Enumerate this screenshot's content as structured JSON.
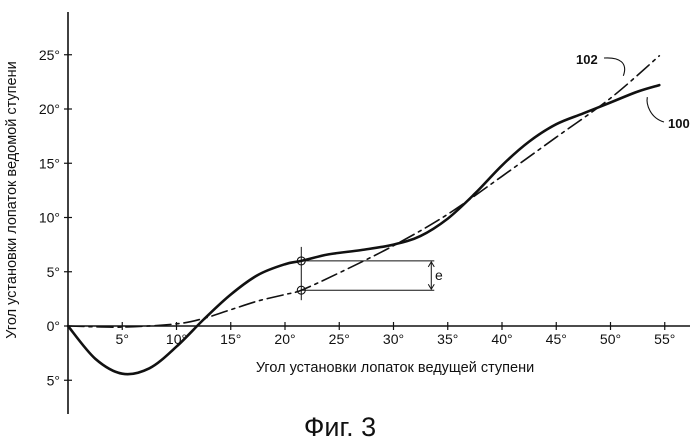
{
  "chart_data": {
    "type": "line",
    "title": "",
    "caption": "Фиг. 3",
    "xlabel": "Угол установки лопаток ведущей ступени",
    "ylabel": "Угол установки лопаток ведомой ступени",
    "xlim": [
      0,
      56
    ],
    "ylim": [
      -8,
      30
    ],
    "x_ticks": [
      {
        "value": 5,
        "label": "5°"
      },
      {
        "value": 10,
        "label": "10°"
      },
      {
        "value": 15,
        "label": "15°"
      },
      {
        "value": 20,
        "label": "20°"
      },
      {
        "value": 25,
        "label": "25°"
      },
      {
        "value": 30,
        "label": "30°"
      },
      {
        "value": 35,
        "label": "35°"
      },
      {
        "value": 40,
        "label": "40°"
      },
      {
        "value": 45,
        "label": "45°"
      },
      {
        "value": 50,
        "label": "50°"
      },
      {
        "value": 55,
        "label": "55°"
      }
    ],
    "y_ticks": [
      {
        "value": 25,
        "label": "25°"
      },
      {
        "value": 20,
        "label": "20°"
      },
      {
        "value": 15,
        "label": "15°"
      },
      {
        "value": 10,
        "label": "10°"
      },
      {
        "value": 5,
        "label": "5°"
      },
      {
        "value": 0,
        "label": "0°"
      },
      {
        "value": -5,
        "label": "5°"
      }
    ],
    "series": [
      {
        "name": "100",
        "style": "solid",
        "color": "#111111",
        "x": [
          0,
          2.5,
          5,
          7.5,
          10,
          12.5,
          15,
          17.5,
          20,
          21.5,
          24,
          27,
          30,
          32.5,
          35,
          37.5,
          40,
          42.5,
          45,
          47.5,
          50,
          52.5,
          54.5
        ],
        "y": [
          0,
          -3.0,
          -4.4,
          -3.9,
          -1.9,
          0.6,
          2.9,
          4.7,
          5.7,
          6.0,
          6.6,
          7.0,
          7.5,
          8.3,
          9.9,
          12.2,
          14.8,
          17.0,
          18.6,
          19.6,
          20.6,
          21.6,
          22.2
        ]
      },
      {
        "name": "102",
        "style": "dash-dot",
        "color": "#111111",
        "x": [
          0,
          5,
          10,
          12.5,
          15,
          17.5,
          20,
          21.5,
          25,
          30,
          35,
          40,
          45,
          50,
          54.5
        ],
        "y": [
          0,
          -0.1,
          0.2,
          0.7,
          1.5,
          2.3,
          2.9,
          3.3,
          4.9,
          7.4,
          10.3,
          13.8,
          17.4,
          21.0,
          24.9
        ]
      }
    ],
    "annotations": [
      {
        "label": "e",
        "x": 21.5,
        "y_from": 3.3,
        "y_to": 6.0
      }
    ]
  }
}
